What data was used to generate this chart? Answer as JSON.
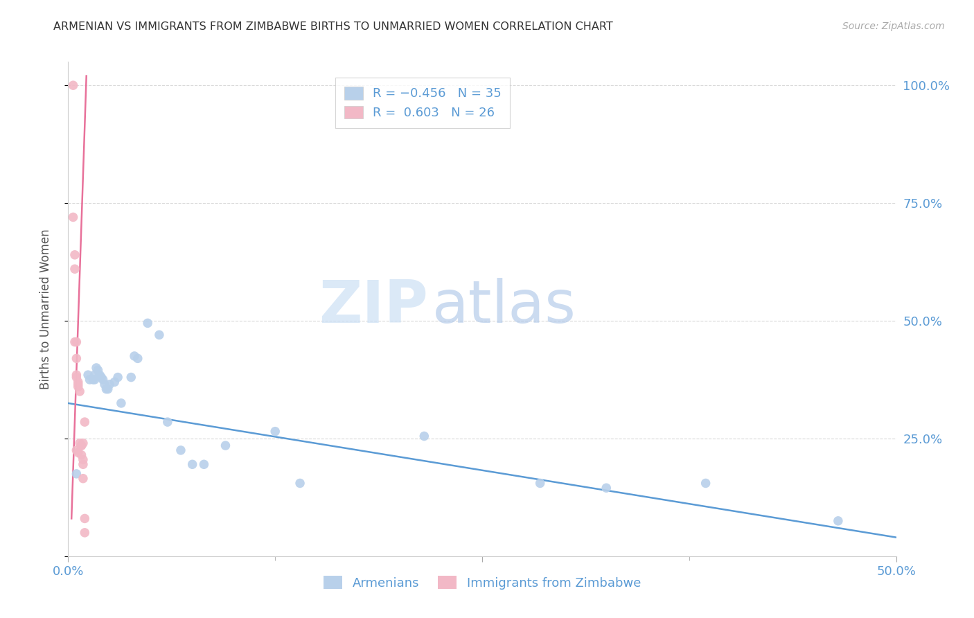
{
  "title": "ARMENIAN VS IMMIGRANTS FROM ZIMBABWE BIRTHS TO UNMARRIED WOMEN CORRELATION CHART",
  "source": "Source: ZipAtlas.com",
  "ylabel": "Births to Unmarried Women",
  "xlim": [
    0.0,
    0.5
  ],
  "ylim": [
    0.0,
    1.05
  ],
  "watermark_line1": "ZIP",
  "watermark_line2": "atlas",
  "blue_color": "#b8d0ea",
  "pink_color": "#f2b8c6",
  "line_blue": "#5b9bd5",
  "line_pink": "#e8719a",
  "axis_color": "#5b9bd5",
  "grid_color": "#d9d9d9",
  "armenian_x": [
    0.005,
    0.012,
    0.013,
    0.015,
    0.016,
    0.016,
    0.017,
    0.018,
    0.019,
    0.02,
    0.021,
    0.022,
    0.023,
    0.024,
    0.025,
    0.028,
    0.03,
    0.032,
    0.038,
    0.04,
    0.042,
    0.048,
    0.055,
    0.06,
    0.068,
    0.075,
    0.082,
    0.095,
    0.125,
    0.14,
    0.215,
    0.285,
    0.325,
    0.385,
    0.465
  ],
  "armenian_y": [
    0.175,
    0.385,
    0.375,
    0.375,
    0.375,
    0.385,
    0.4,
    0.395,
    0.385,
    0.38,
    0.375,
    0.365,
    0.355,
    0.355,
    0.365,
    0.37,
    0.38,
    0.325,
    0.38,
    0.425,
    0.42,
    0.495,
    0.47,
    0.285,
    0.225,
    0.195,
    0.195,
    0.235,
    0.265,
    0.155,
    0.255,
    0.155,
    0.145,
    0.155,
    0.075
  ],
  "zimbabwe_x": [
    0.003,
    0.003,
    0.004,
    0.004,
    0.004,
    0.005,
    0.005,
    0.005,
    0.005,
    0.005,
    0.006,
    0.006,
    0.006,
    0.006,
    0.007,
    0.007,
    0.008,
    0.008,
    0.008,
    0.009,
    0.009,
    0.009,
    0.009,
    0.01,
    0.01,
    0.01
  ],
  "zimbabwe_y": [
    1.0,
    0.72,
    0.64,
    0.61,
    0.455,
    0.455,
    0.42,
    0.385,
    0.38,
    0.225,
    0.37,
    0.365,
    0.36,
    0.22,
    0.35,
    0.24,
    0.235,
    0.215,
    0.235,
    0.205,
    0.195,
    0.165,
    0.24,
    0.05,
    0.08,
    0.285
  ],
  "blue_line_x": [
    0.0,
    0.5
  ],
  "blue_line_y": [
    0.325,
    0.04
  ],
  "pink_line_x": [
    0.002,
    0.011
  ],
  "pink_line_y": [
    0.08,
    1.02
  ]
}
